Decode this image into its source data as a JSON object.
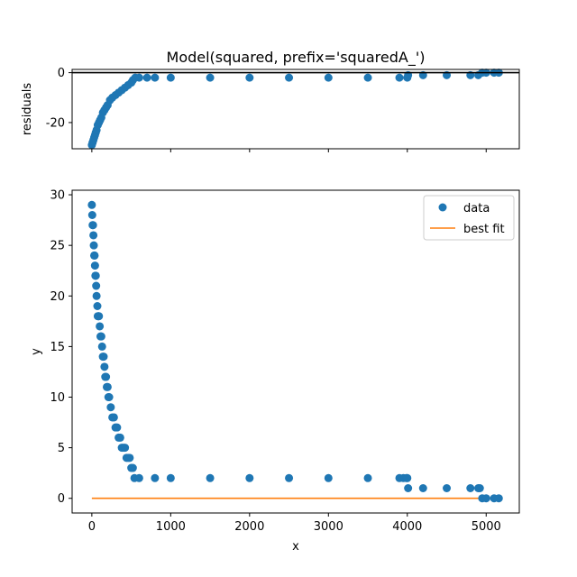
{
  "chart_data": [
    {
      "type": "scatter",
      "panel": "residuals",
      "title": "Model(squared, prefix='squaredA_')",
      "xlabel": "",
      "ylabel": "residuals",
      "xlim": [
        -250,
        5420
      ],
      "ylim": [
        -30.5,
        1.3
      ],
      "yticks": [
        0,
        -20
      ],
      "xticks": [
        0,
        1000,
        2000,
        3000,
        4000,
        5000
      ],
      "show_xtick_labels": false,
      "reference_line_y": 0,
      "grid": false,
      "marker_color": "#1f77b4",
      "series": [
        {
          "x": [
            0,
            10,
            20,
            30,
            40,
            50,
            60,
            75,
            90,
            105,
            120,
            140,
            160,
            180,
            200,
            230,
            260,
            300,
            340,
            380,
            420,
            460,
            500,
            520,
            550,
            600,
            700,
            800,
            1000,
            1500,
            2000,
            2500,
            3000,
            3500,
            3900,
            4000,
            4010,
            4200,
            4500,
            4800,
            4900,
            4950,
            5000,
            5100,
            5160
          ],
          "values": [
            -29,
            -28,
            -27,
            -26,
            -25,
            -24,
            -23,
            -21,
            -20,
            -19,
            -18,
            -16,
            -15,
            -14,
            -13,
            -11,
            -10,
            -9,
            -8,
            -7,
            -6,
            -5,
            -4,
            -3,
            -2,
            -2,
            -2,
            -2,
            -2,
            -2,
            -2,
            -2,
            -2,
            -2,
            -2,
            -2,
            -1,
            -1,
            -1,
            -1,
            -1,
            0,
            0,
            0,
            0
          ]
        }
      ]
    },
    {
      "type": "scatter",
      "panel": "main",
      "title": "",
      "xlabel": "x",
      "ylabel": "y",
      "xlim": [
        -250,
        5420
      ],
      "ylim": [
        -1.45,
        30.45
      ],
      "xticks": [
        0,
        1000,
        2000,
        3000,
        4000,
        5000
      ],
      "yticks": [
        0,
        5,
        10,
        15,
        20,
        25,
        30
      ],
      "grid": false,
      "legend_position": "top-right",
      "series": [
        {
          "name": "data",
          "kind": "points",
          "color": "#1f77b4",
          "x": [
            0,
            5,
            10,
            15,
            20,
            25,
            30,
            35,
            40,
            45,
            50,
            55,
            60,
            70,
            75,
            85,
            90,
            100,
            110,
            120,
            130,
            140,
            150,
            160,
            170,
            180,
            190,
            200,
            210,
            220,
            240,
            260,
            280,
            300,
            320,
            340,
            360,
            380,
            400,
            420,
            440,
            460,
            480,
            500,
            520,
            540,
            600,
            800,
            1000,
            1500,
            2000,
            2500,
            3000,
            3500,
            3900,
            3950,
            3990,
            4000,
            4010,
            4200,
            4500,
            4800,
            4900,
            4920,
            4950,
            5000,
            5100,
            5160
          ],
          "values": [
            29,
            28,
            27,
            27,
            26,
            25,
            24,
            24,
            23,
            22,
            22,
            21,
            20,
            19,
            18,
            18,
            18,
            17,
            16,
            16,
            15,
            14,
            14,
            13,
            12,
            12,
            11,
            11,
            10,
            10,
            9,
            8,
            8,
            7,
            7,
            6,
            6,
            5,
            5,
            5,
            4,
            4,
            4,
            3,
            3,
            2,
            2,
            2,
            2,
            2,
            2,
            2,
            2,
            2,
            2,
            2,
            2,
            2,
            1,
            1,
            1,
            1,
            1,
            1,
            0,
            0,
            0,
            0
          ]
        },
        {
          "name": "best fit",
          "kind": "line",
          "color": "#ff7f0e",
          "x": [
            0,
            5160
          ],
          "values": [
            0,
            0
          ]
        }
      ]
    }
  ]
}
